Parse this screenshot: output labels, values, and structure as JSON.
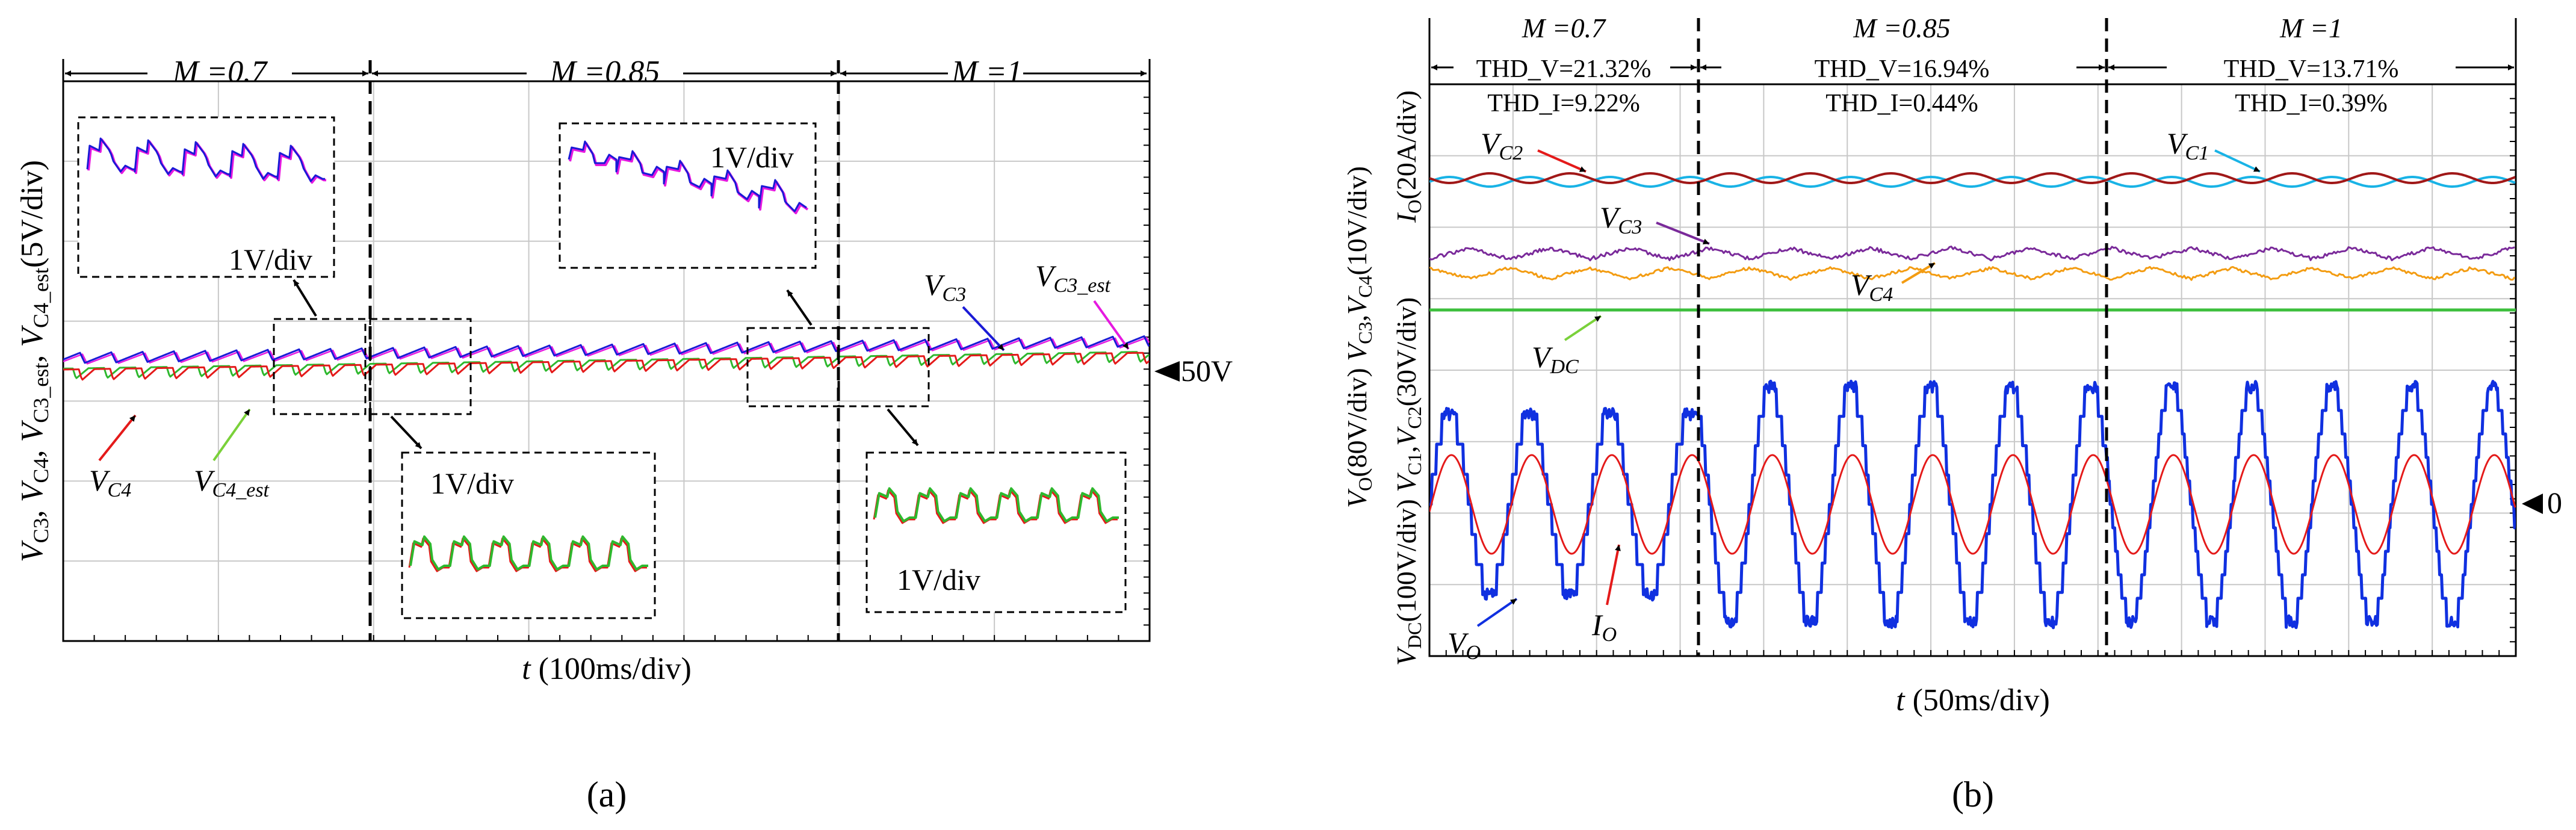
{
  "panel_labels": {
    "a": "(a)",
    "b": "(b)"
  },
  "chart_data": [
    {
      "id": "a",
      "type": "line",
      "title": "",
      "segments": [
        {
          "label": "M =0.7",
          "range": [
            0,
            2.0
          ]
        },
        {
          "label": "M =0.85",
          "range": [
            2.0,
            5.0
          ]
        },
        {
          "label": "M =1",
          "range": [
            5.0,
            7.0
          ]
        }
      ],
      "xlabel": "t (100ms/div)",
      "ylabel": "V_C3, V_C4, V_C3_est, V_C4_est (5V/div)",
      "xlim": [
        0,
        7
      ],
      "ylim": [
        0,
        7
      ],
      "reference_marker": "50V",
      "series": [
        {
          "name": "V_C3",
          "color": "#1a1ad6",
          "nominal": 50,
          "ripple_V": 1.5
        },
        {
          "name": "V_C3_est",
          "color": "#e619e0",
          "nominal": 50,
          "ripple_V": 1.5
        },
        {
          "name": "V_C4",
          "color": "#e41a1a",
          "nominal": 49.5,
          "ripple_V": 1.5
        },
        {
          "name": "V_C4_est",
          "color": "#2eb82e",
          "nominal": 49.5,
          "ripple_V": 1.5
        }
      ],
      "annotations": {
        "vc3": "V_C3",
        "vc3est": "V_C3_est",
        "vc4": "V_C4",
        "vc4est": "V_C4_est",
        "zoom_scale": "1V/div"
      }
    },
    {
      "id": "b",
      "type": "line",
      "segments": [
        {
          "label": "M =0.7",
          "thdv": "THD_V=21.32%",
          "thdi": "THD_I=9.22%"
        },
        {
          "label": "M =0.85",
          "thdv": "THD_V=16.94%",
          "thdi": "THD_I=0.44%"
        },
        {
          "label": "M =1",
          "thdv": "THD_V=13.71%",
          "thdi": "THD_I=0.39%"
        }
      ],
      "xlabel": "t (50ms/div)",
      "ylabel_lines": [
        "I_O(20A/div)",
        "V_O(80V/div) V_C3,V_C4(10V/div)",
        "V_DC(100V/div) V_C1,V_C2(30V/div)"
      ],
      "xlim": [
        0,
        13
      ],
      "ylim": [
        0,
        8
      ],
      "zero_marker": "0",
      "series": [
        {
          "name": "V_C1",
          "color": "#19b3e6"
        },
        {
          "name": "V_C2",
          "color": "#a01818"
        },
        {
          "name": "V_C3",
          "color": "#7a2a9a"
        },
        {
          "name": "V_C4",
          "color": "#f39c12"
        },
        {
          "name": "V_DC",
          "color": "#3cbf3c"
        },
        {
          "name": "V_O",
          "color": "#1030e0"
        },
        {
          "name": "I_O",
          "color": "#e41a1a"
        }
      ]
    }
  ]
}
